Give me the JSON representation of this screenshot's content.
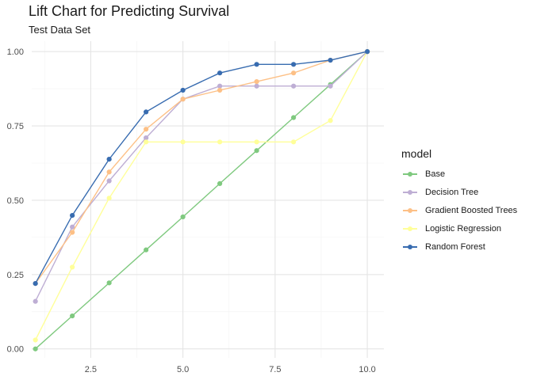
{
  "chart_data": {
    "type": "line",
    "title": "Lift Chart for Predicting Survival",
    "subtitle": "Test Data Set",
    "xlabel": "",
    "ylabel": "",
    "xlim": [
      0.9,
      10.45
    ],
    "ylim": [
      -0.03,
      1.035
    ],
    "x_ticks": [
      2.5,
      5.0,
      7.5,
      10.0
    ],
    "x_tick_labels": [
      "2.5",
      "5.0",
      "7.5",
      "10.0"
    ],
    "y_ticks": [
      0,
      0.25,
      0.5,
      0.75,
      1.0
    ],
    "y_tick_labels": [
      "0.00",
      "0.25",
      "0.50",
      "0.75",
      "1.00"
    ],
    "grid": true,
    "legend_title": "model",
    "legend_position": "right",
    "x": [
      1,
      2,
      3,
      4,
      5,
      6,
      7,
      8,
      9,
      10
    ],
    "series": [
      {
        "name": "Base",
        "color": "#7fc97f",
        "values": [
          0.0,
          0.111,
          0.222,
          0.333,
          0.444,
          0.556,
          0.667,
          0.778,
          0.889,
          1.0
        ]
      },
      {
        "name": "Decision Tree",
        "color": "#beaed4",
        "values": [
          0.16,
          0.41,
          0.565,
          0.71,
          0.84,
          0.884,
          0.884,
          0.884,
          0.884,
          1.0
        ]
      },
      {
        "name": "Gradient Boosted Trees",
        "color": "#fdc086",
        "values": [
          0.22,
          0.392,
          0.595,
          0.739,
          0.84,
          0.87,
          0.899,
          0.928,
          0.971,
          1.0
        ]
      },
      {
        "name": "Logistic Regression",
        "color": "#ffff99",
        "values": [
          0.03,
          0.275,
          0.507,
          0.696,
          0.696,
          0.696,
          0.696,
          0.696,
          0.768,
          1.0
        ]
      },
      {
        "name": "Random Forest",
        "color": "#386cb0",
        "values": [
          0.22,
          0.449,
          0.638,
          0.797,
          0.87,
          0.928,
          0.957,
          0.957,
          0.971,
          1.0
        ]
      }
    ]
  }
}
